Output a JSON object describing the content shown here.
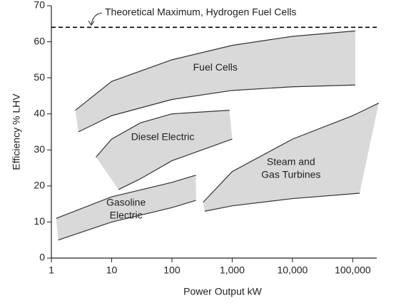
{
  "chart_data": {
    "type": "range-area",
    "x_label": "Power Output kW",
    "y_label": "Efficiency % LHV",
    "xscale": "log",
    "xlim": [
      1,
      250000
    ],
    "ylim": [
      0,
      70
    ],
    "xticks": [
      1,
      10,
      100,
      {
        "value": 1000,
        "label": "1,000"
      },
      {
        "value": 10000,
        "label": "10,000"
      },
      {
        "value": 100000,
        "label": "100,000"
      }
    ],
    "yticks": [
      0,
      10,
      20,
      30,
      40,
      50,
      60,
      70
    ],
    "color": "#d9d9d9",
    "reference_line": {
      "y": 64,
      "label": "Theoretical Maximum, Hydrogen Fuel Cells"
    },
    "series": [
      {
        "name": [
          "Fuel Cells"
        ],
        "upper_x": [
          2.5,
          10,
          100,
          1000,
          10000,
          110000
        ],
        "upper_y": [
          41,
          49,
          55,
          59,
          61.5,
          63
        ],
        "lower_x": [
          2.8,
          10,
          100,
          1000,
          10000,
          110000
        ],
        "lower_y": [
          35,
          39.5,
          44,
          46.5,
          47.5,
          48
        ]
      },
      {
        "name": [
          "Diesel Electric"
        ],
        "upper_x": [
          5.5,
          10,
          30,
          100,
          900
        ],
        "upper_y": [
          28,
          33,
          37.5,
          40,
          41
        ],
        "lower_x": [
          13,
          30,
          100,
          1000
        ],
        "lower_y": [
          19,
          22,
          27,
          33
        ]
      },
      {
        "name": [
          "Steam and",
          "Gas Turbines"
        ],
        "upper_x": [
          330,
          1000,
          10000,
          100000,
          270000
        ],
        "upper_y": [
          15.5,
          24,
          33,
          39.5,
          43
        ],
        "lower_x": [
          350,
          1000,
          10000,
          130000
        ],
        "lower_y": [
          13,
          14.5,
          16.5,
          18
        ]
      },
      {
        "name": [
          "Gasoline",
          "Electric"
        ],
        "upper_x": [
          1.2,
          10,
          100,
          250
        ],
        "upper_y": [
          11,
          17,
          21,
          23
        ],
        "lower_x": [
          1.3,
          10,
          100,
          250
        ],
        "lower_y": [
          5,
          10,
          14,
          16
        ]
      }
    ]
  }
}
